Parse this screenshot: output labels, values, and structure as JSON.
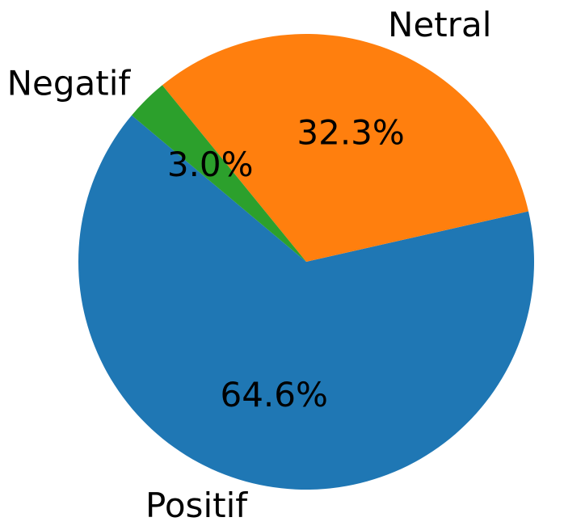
{
  "chart_data": {
    "type": "pie",
    "categories": [
      "Positif",
      "Netral",
      "Negatif"
    ],
    "values": [
      64.6,
      32.3,
      3.0
    ],
    "percent_labels": [
      "64.6%",
      "32.3%",
      "3.0%"
    ],
    "colors": [
      "#1f77b4",
      "#ff7f0e",
      "#2ca02c"
    ],
    "start_angle_deg": 140,
    "direction": "counterclockwise",
    "title": "",
    "legend": "none"
  }
}
